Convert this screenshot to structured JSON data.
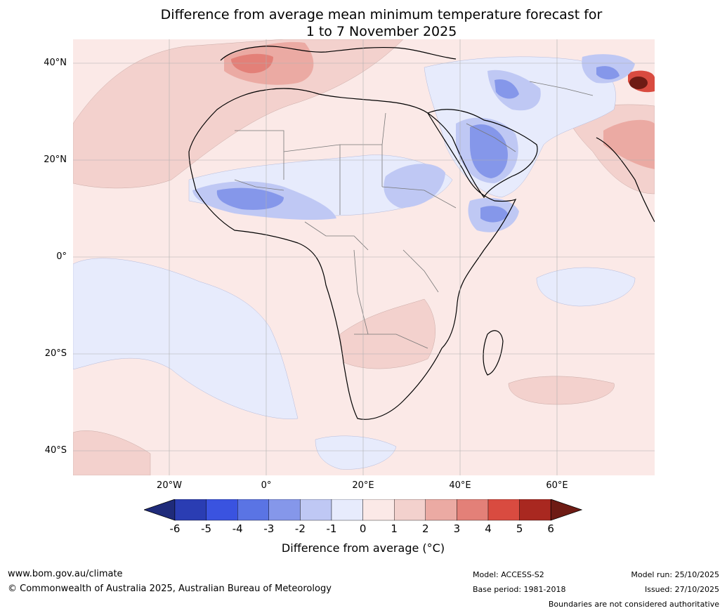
{
  "title": {
    "line1": "Difference from average mean minimum temperature forecast for",
    "line2": "1 to 7 November 2025"
  },
  "lat_labels": [
    "40°N",
    "20°N",
    "0°",
    "20°S",
    "40°S"
  ],
  "lon_labels": [
    "20°W",
    "0°",
    "20°E",
    "40°E",
    "60°E"
  ],
  "colorbar": {
    "ticks": [
      "-6",
      "-5",
      "-4",
      "-3",
      "-2",
      "-1",
      "0",
      "1",
      "2",
      "3",
      "4",
      "5",
      "6"
    ],
    "colors": [
      "#1f2b7a",
      "#2a3db3",
      "#3a53e0",
      "#5a74e4",
      "#8597ea",
      "#bfc8f4",
      "#e7ebfc",
      "#fbe9e7",
      "#f3d1cd",
      "#ebaaa3",
      "#e38078",
      "#d94b40",
      "#a92820",
      "#6e1b14"
    ],
    "label": "Difference from average (°C)"
  },
  "footer": {
    "url": "www.bom.gov.au/climate",
    "copyright": "© Commonwealth of Australia 2025, Australian Bureau of Meteorology",
    "model": "Model: ACCESS-S2",
    "base_period": "Base period: 1981-2018",
    "model_run": "Model run: 25/10/2025",
    "issued": "Issued: 27/10/2025",
    "disclaimer": "Boundaries are not considered authoritative"
  }
}
